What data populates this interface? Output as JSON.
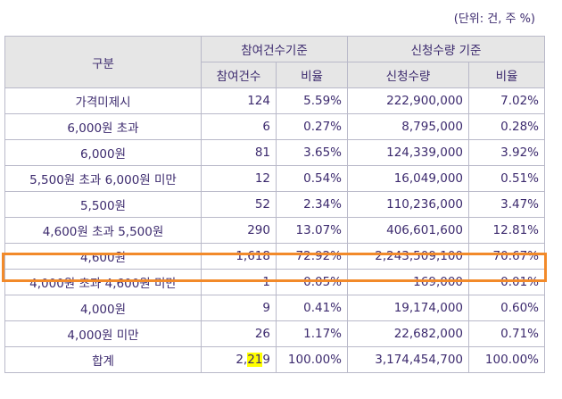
{
  "unit_note": "(단위: 건, 주 %)",
  "header": {
    "category": "구분",
    "group1": "참여건수기준",
    "group2": "신청수량 기준",
    "sub1": "참여건수",
    "sub2": "비율",
    "sub3": "신청수량",
    "sub4": "비율"
  },
  "rows": [
    {
      "label": "가격미제시",
      "count": "124",
      "count_ratio": "5.59%",
      "qty": "222,900,000",
      "qty_ratio": "7.02%"
    },
    {
      "label": "6,000원 초과",
      "count": "6",
      "count_ratio": "0.27%",
      "qty": "8,795,000",
      "qty_ratio": "0.28%"
    },
    {
      "label": "6,000원",
      "count": "81",
      "count_ratio": "3.65%",
      "qty": "124,339,000",
      "qty_ratio": "3.92%"
    },
    {
      "label": "5,500원 초과 6,000원 미만",
      "count": "12",
      "count_ratio": "0.54%",
      "qty": "16,049,000",
      "qty_ratio": "0.51%"
    },
    {
      "label": "5,500원",
      "count": "52",
      "count_ratio": "2.34%",
      "qty": "110,236,000",
      "qty_ratio": "3.47%"
    },
    {
      "label": "4,600원 초과 5,500원",
      "count": "290",
      "count_ratio": "13.07%",
      "qty": "406,601,600",
      "qty_ratio": "12.81%"
    },
    {
      "label": "4,600원",
      "count": "1,618",
      "count_ratio": "72.92%",
      "qty": "2,243,509,100",
      "qty_ratio": "70.67%"
    },
    {
      "label": "4,000원 초과 4,600원 미만",
      "count": "1",
      "count_ratio": "0.05%",
      "qty": "169,000",
      "qty_ratio": "0.01%"
    },
    {
      "label": "4,000원",
      "count": "9",
      "count_ratio": "0.41%",
      "qty": "19,174,000",
      "qty_ratio": "0.60%"
    },
    {
      "label": "4,000원 미만",
      "count": "26",
      "count_ratio": "1.17%",
      "qty": "22,682,000",
      "qty_ratio": "0.71%"
    }
  ],
  "total": {
    "label": "합계",
    "count_pre": "2,",
    "count_hl": "21",
    "count_post": "9",
    "count_ratio": "100.00%",
    "qty": "3,174,454,700",
    "qty_ratio": "100.00%"
  },
  "colors": {
    "header_bg": "#e6e6e6",
    "text": "#3c2a6e",
    "highlight_border": "#f28a2a",
    "text_highlight": "#ffff00"
  }
}
